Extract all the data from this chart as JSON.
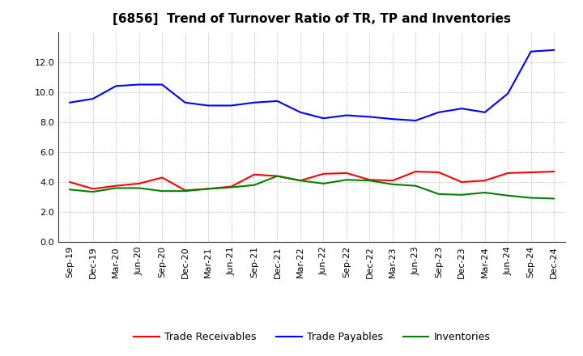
{
  "title": "[6856]  Trend of Turnover Ratio of TR, TP and Inventories",
  "x_labels": [
    "Sep-19",
    "Dec-19",
    "Mar-20",
    "Jun-20",
    "Sep-20",
    "Dec-20",
    "Mar-21",
    "Jun-21",
    "Sep-21",
    "Dec-21",
    "Mar-22",
    "Jun-22",
    "Sep-22",
    "Dec-22",
    "Mar-23",
    "Jun-23",
    "Sep-23",
    "Dec-23",
    "Mar-24",
    "Jun-24",
    "Sep-24",
    "Dec-24"
  ],
  "trade_receivables": [
    4.0,
    3.55,
    3.75,
    3.9,
    4.3,
    3.45,
    3.55,
    3.7,
    4.5,
    4.4,
    4.1,
    4.55,
    4.6,
    4.15,
    4.1,
    4.7,
    4.65,
    4.0,
    4.1,
    4.6,
    4.65,
    4.7
  ],
  "trade_payables": [
    9.3,
    9.55,
    10.4,
    10.5,
    10.5,
    9.3,
    9.1,
    9.1,
    9.3,
    9.4,
    8.65,
    8.25,
    8.45,
    8.35,
    8.2,
    8.1,
    8.65,
    8.9,
    8.65,
    9.9,
    12.7,
    12.8
  ],
  "inventories": [
    3.5,
    3.35,
    3.6,
    3.6,
    3.4,
    3.4,
    3.55,
    3.65,
    3.8,
    4.4,
    4.1,
    3.9,
    4.15,
    4.1,
    3.85,
    3.75,
    3.2,
    3.15,
    3.3,
    3.1,
    2.95,
    2.9
  ],
  "ylim": [
    0.0,
    14.0
  ],
  "yticks": [
    0.0,
    2.0,
    4.0,
    6.0,
    8.0,
    10.0,
    12.0
  ],
  "line_color_tr": "#ff0000",
  "line_color_tp": "#0000ff",
  "line_color_inv": "#008000",
  "background_color": "#ffffff",
  "grid_color": "#999999",
  "legend_labels": [
    "Trade Receivables",
    "Trade Payables",
    "Inventories"
  ],
  "title_fontsize": 11,
  "tick_fontsize": 8,
  "legend_fontsize": 9
}
